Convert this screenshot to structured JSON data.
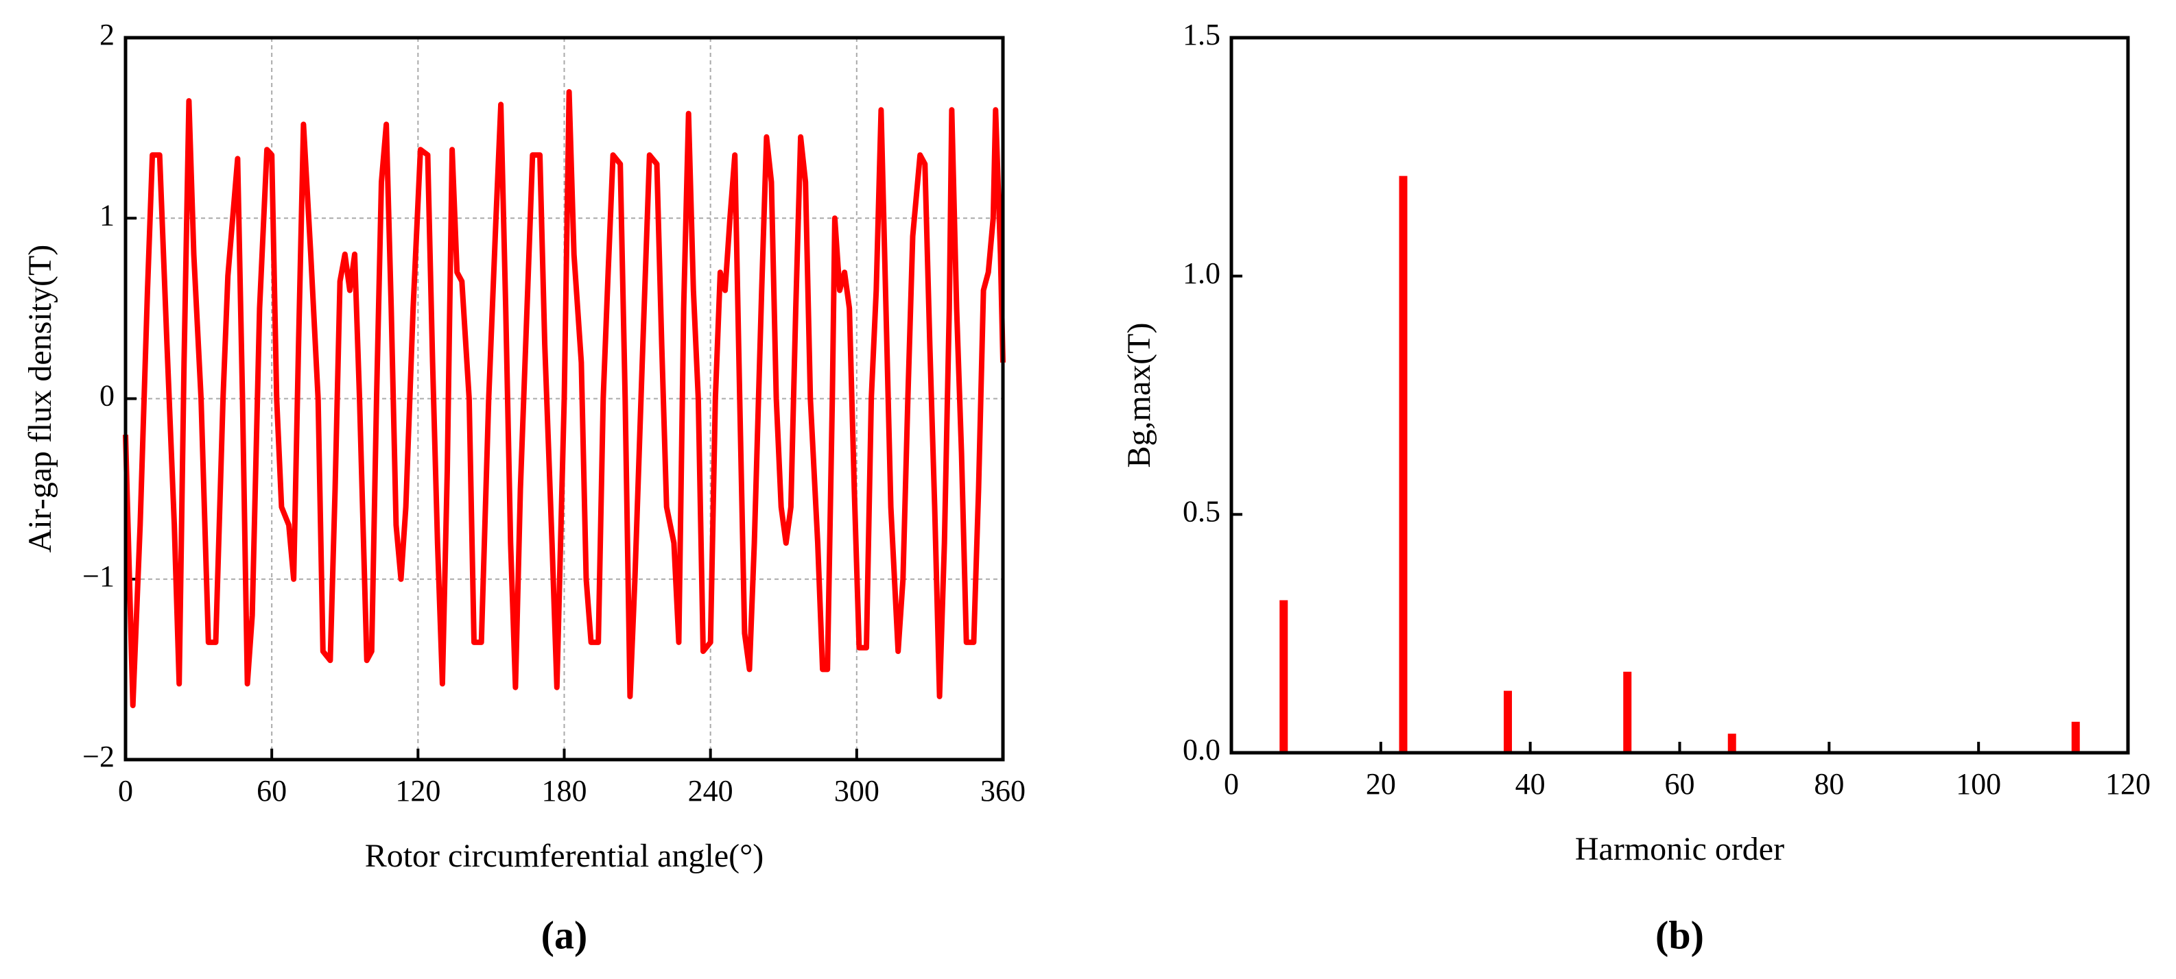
{
  "chart_data": [
    {
      "type": "line",
      "label": "(a)",
      "x_label": "Rotor circumferential angle(°)",
      "y_label": "Air-gap flux density(T)",
      "color": "#ff0000",
      "grid": true,
      "xlim": [
        0,
        360
      ],
      "xticks": [
        0,
        60,
        120,
        180,
        240,
        300,
        360
      ],
      "ylim": [
        -2,
        2
      ],
      "yticks": [
        {
          "value": -2,
          "label": "−2"
        },
        {
          "value": -1,
          "label": "−1"
        },
        0,
        1,
        2
      ],
      "x": [
        0,
        3,
        6,
        9,
        11,
        14,
        17,
        20,
        22,
        24,
        26,
        28,
        31,
        34,
        37,
        40,
        42,
        46,
        48,
        50,
        52,
        55,
        58,
        60,
        62,
        64,
        67,
        69,
        71,
        73,
        76,
        79,
        81,
        84,
        86,
        88,
        90,
        92,
        94,
        96,
        99,
        101,
        103,
        105,
        107,
        109,
        111,
        113,
        115,
        118,
        121,
        124,
        126,
        128,
        130,
        132,
        134,
        136,
        138,
        141,
        143,
        146,
        149,
        152,
        154,
        156,
        158,
        160,
        162,
        165,
        167,
        170,
        172,
        175,
        177,
        180,
        182,
        184,
        187,
        189,
        191,
        194,
        196,
        198,
        200,
        203,
        205,
        207,
        209,
        212,
        215,
        218,
        220,
        222,
        225,
        227,
        229,
        231,
        233,
        235,
        237,
        240,
        242,
        244,
        246,
        248,
        250,
        252,
        254,
        256,
        258,
        261,
        263,
        265,
        267,
        269,
        271,
        273,
        275,
        277,
        279,
        281,
        284,
        286,
        288,
        290,
        291,
        293,
        295,
        297,
        299,
        301,
        304,
        306,
        308,
        310,
        312,
        314,
        317,
        319,
        321,
        323,
        326,
        328,
        330,
        332,
        334,
        336,
        338,
        339,
        341,
        343,
        345,
        348,
        350,
        352,
        354,
        356,
        357,
        359,
        360
      ],
      "values": [
        -0.2,
        -1.7,
        -0.7,
        0.6,
        1.35,
        1.35,
        0.3,
        -0.7,
        -1.58,
        0.2,
        1.65,
        0.8,
        0,
        -1.35,
        -1.35,
        0,
        0.68,
        1.33,
        0,
        -1.58,
        -1.2,
        0.5,
        1.38,
        1.35,
        0,
        -0.6,
        -0.7,
        -1.0,
        0.3,
        1.52,
        0.8,
        0,
        -1.4,
        -1.45,
        -0.5,
        0.65,
        0.8,
        0.6,
        0.8,
        0,
        -1.45,
        -1.4,
        0,
        1.2,
        1.52,
        0.5,
        -0.7,
        -1.0,
        -0.6,
        0.5,
        1.38,
        1.35,
        0.2,
        -0.8,
        -1.58,
        -0.4,
        1.38,
        0.7,
        0.65,
        0,
        -1.35,
        -1.35,
        0,
        1.0,
        1.63,
        0.5,
        -0.8,
        -1.6,
        -0.5,
        0.6,
        1.35,
        1.35,
        0.3,
        -0.8,
        -1.6,
        0,
        1.7,
        0.8,
        0.2,
        -1.0,
        -1.35,
        -1.35,
        0,
        0.7,
        1.35,
        1.3,
        0,
        -1.65,
        -1.0,
        0.2,
        1.35,
        1.3,
        0.3,
        -0.6,
        -0.8,
        -1.35,
        0.5,
        1.58,
        0.6,
        0,
        -1.4,
        -1.35,
        0,
        0.7,
        0.6,
        1.0,
        1.35,
        0,
        -1.3,
        -1.5,
        -0.8,
        0.6,
        1.45,
        1.2,
        0,
        -0.6,
        -0.8,
        -0.6,
        0.5,
        1.45,
        1.2,
        0,
        -0.8,
        -1.5,
        -1.5,
        0,
        1.0,
        0.6,
        0.7,
        0.5,
        -0.5,
        -1.38,
        -1.38,
        0,
        0.6,
        1.6,
        0.5,
        -0.6,
        -1.4,
        -1.0,
        0,
        0.9,
        1.35,
        1.3,
        0.3,
        -0.6,
        -1.65,
        -0.8,
        0.5,
        1.6,
        0.5,
        -0.3,
        -1.35,
        -1.35,
        -0.5,
        0.6,
        0.7,
        1.0,
        1.6,
        0.8,
        0.2
      ]
    },
    {
      "type": "bar",
      "label": "(b)",
      "x_label": "Harmonic order",
      "y_label": "Bg,max(T)",
      "color": "#ff0000",
      "grid": false,
      "xlim": [
        0,
        120
      ],
      "xticks": [
        0,
        20,
        40,
        60,
        80,
        100,
        120
      ],
      "ylim": [
        0,
        1.5
      ],
      "yticks": [
        {
          "value": 0,
          "label": "0.0"
        },
        0.5,
        {
          "value": 1,
          "label": "1.0"
        },
        1.5
      ],
      "x": [
        7,
        23,
        37,
        53,
        67,
        113
      ],
      "values": [
        0.32,
        1.21,
        0.13,
        0.17,
        0.04,
        0.065
      ]
    }
  ]
}
